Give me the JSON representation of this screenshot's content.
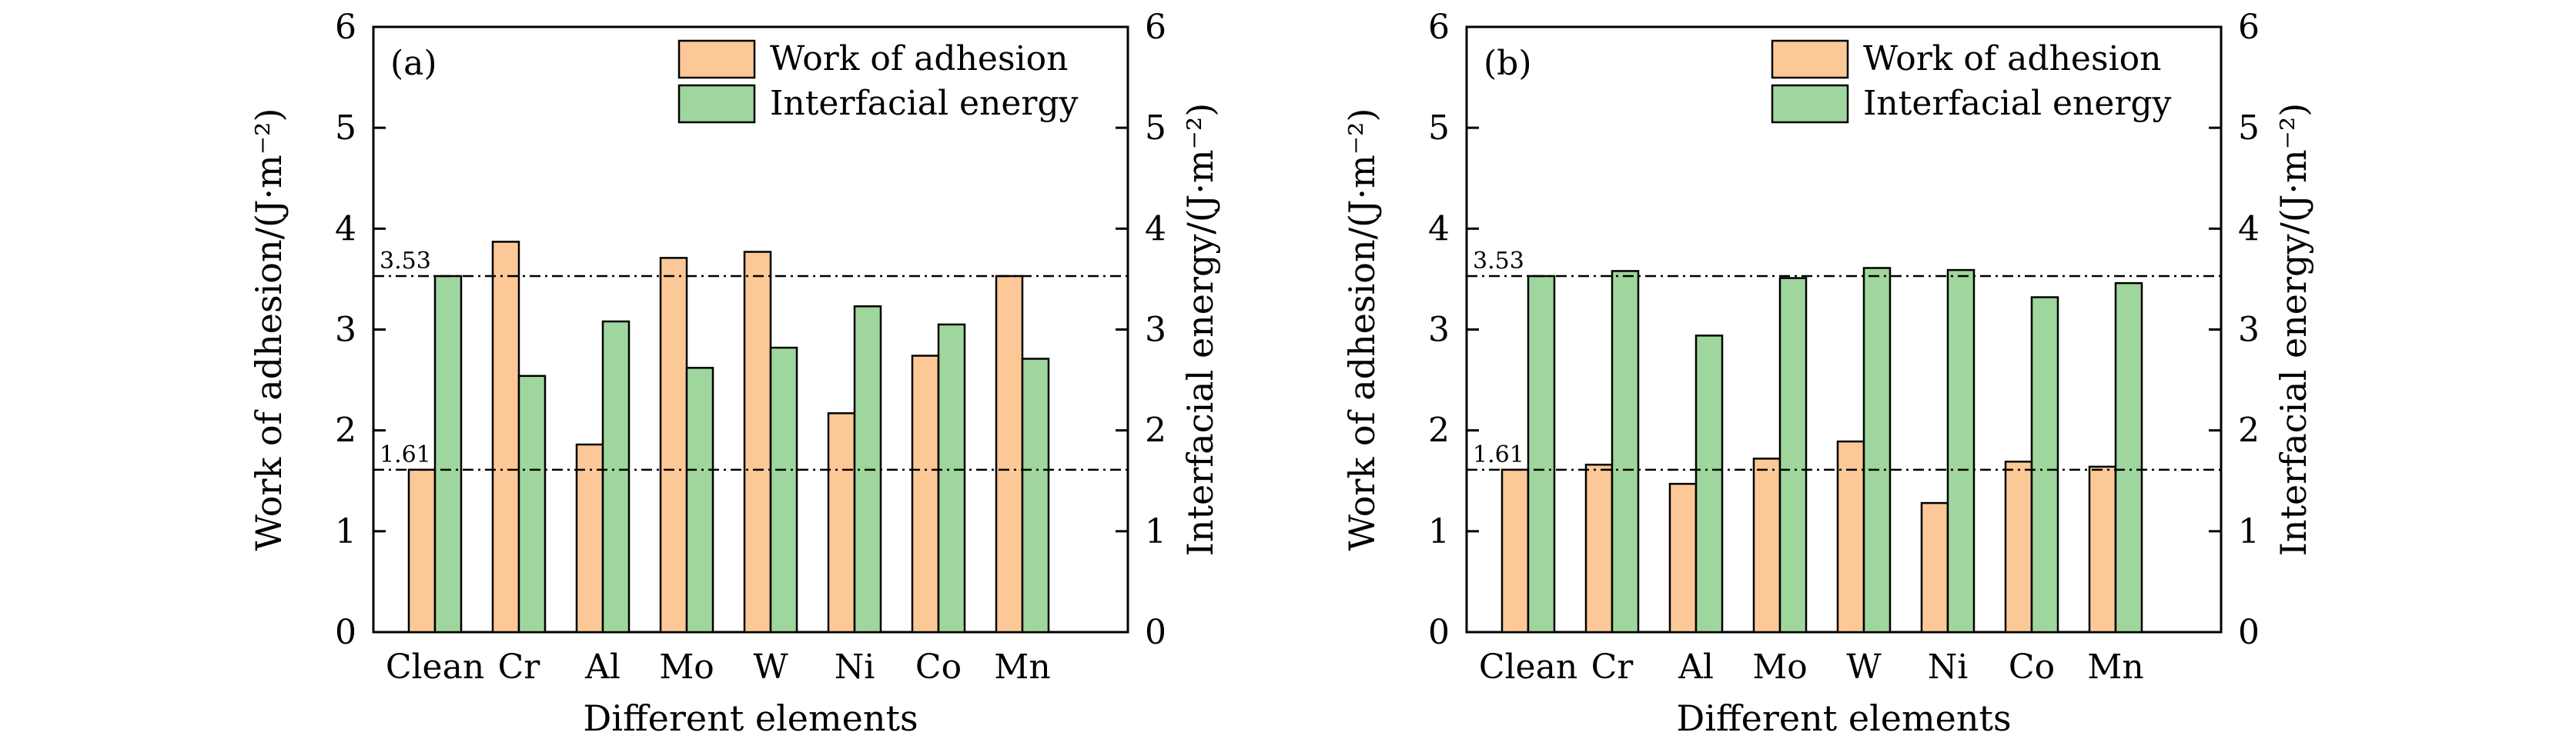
{
  "colors": {
    "work_of_adhesion": "#fdc897",
    "interfacial_energy": "#9fd69d",
    "stroke": "#000000"
  },
  "chart_data": [
    {
      "type": "bar",
      "panel_label": "(a)",
      "categories": [
        "Clean",
        "Cr",
        "Al",
        "Mo",
        "W",
        "Ni",
        "Co",
        "Mn"
      ],
      "series": [
        {
          "name": "Work of adhesion",
          "axis": "left",
          "values": [
            1.61,
            3.87,
            1.86,
            3.71,
            3.77,
            2.17,
            2.74,
            3.53
          ]
        },
        {
          "name": "Interfacial energy",
          "axis": "right",
          "values": [
            3.53,
            2.54,
            3.08,
            2.62,
            2.82,
            3.23,
            3.05,
            2.71
          ]
        }
      ],
      "xlabel": "Different elements",
      "ylabel_left": "Work of adhesion/(J·m⁻²)",
      "ylabel_right": "Interfacial energy/(J·m⁻²)",
      "ylim": [
        0,
        6
      ],
      "yticks": [
        "0",
        "1",
        "2",
        "3",
        "4",
        "5",
        "6"
      ],
      "reference_lines": [
        {
          "value": 3.53,
          "label": "3.53"
        },
        {
          "value": 1.61,
          "label": "1.61"
        }
      ],
      "legend_position": "top-right"
    },
    {
      "type": "bar",
      "panel_label": "(b)",
      "categories": [
        "Clean",
        "Cr",
        "Al",
        "Mo",
        "W",
        "Ni",
        "Co",
        "Mn"
      ],
      "series": [
        {
          "name": "Work of adhesion",
          "axis": "left",
          "values": [
            1.61,
            1.66,
            1.47,
            1.72,
            1.89,
            1.28,
            1.69,
            1.64
          ]
        },
        {
          "name": "Interfacial energy",
          "axis": "right",
          "values": [
            3.53,
            3.58,
            2.94,
            3.51,
            3.61,
            3.59,
            3.32,
            3.46
          ]
        }
      ],
      "xlabel": "Different elements",
      "ylabel_left": "Work of adhesion/(J·m⁻²)",
      "ylabel_right": "Interfacial energy/(J·m⁻²)",
      "ylim": [
        0,
        6
      ],
      "yticks": [
        "0",
        "1",
        "2",
        "3",
        "4",
        "5",
        "6"
      ],
      "reference_lines": [
        {
          "value": 3.53,
          "label": "3.53"
        },
        {
          "value": 1.61,
          "label": "1.61"
        }
      ],
      "legend_position": "top-right"
    }
  ]
}
